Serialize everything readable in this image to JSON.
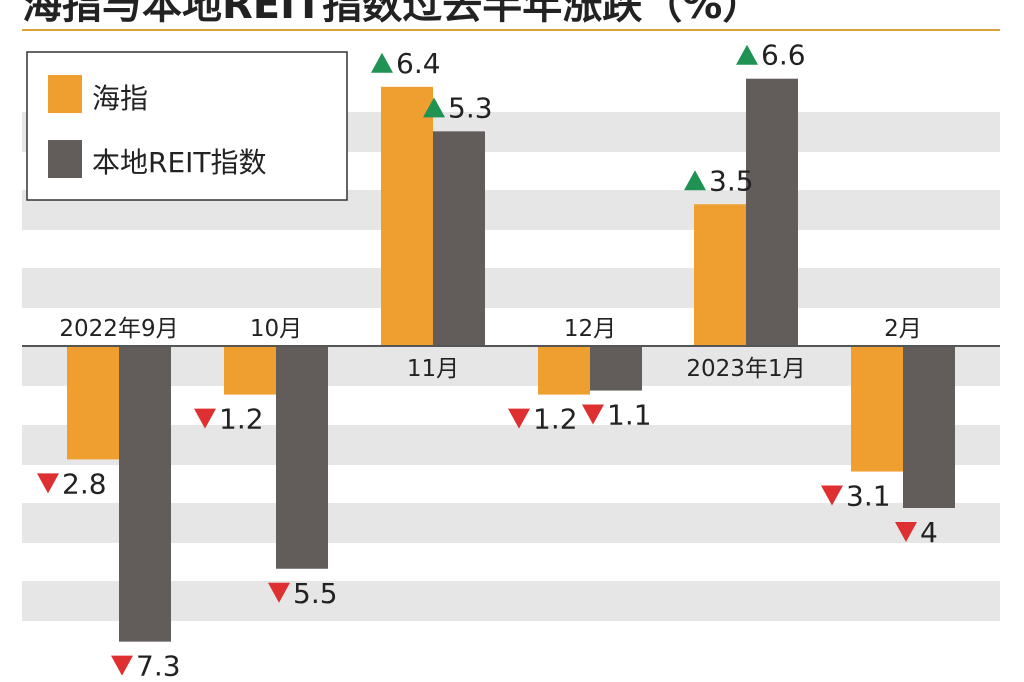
{
  "title": "海指与本地REIT指数过去半年涨跌（%）",
  "colors": {
    "orange": "#ef9f2f",
    "gray": "#625d5a",
    "up": "#1f9254",
    "down": "#de3030",
    "stripe": "#e6e6e6",
    "title_rule": "#d9a23a",
    "text": "#222222"
  },
  "chart_data": {
    "type": "bar",
    "categories": [
      "2022年9月",
      "10月",
      "11月",
      "12月",
      "2023年1月",
      "2月"
    ],
    "series": [
      {
        "name": "海指",
        "values": [
          -2.8,
          -1.2,
          6.4,
          -1.2,
          3.5,
          -3.1
        ]
      },
      {
        "name": "本地REIT指数",
        "values": [
          -7.3,
          -5.5,
          5.3,
          -1.1,
          6.6,
          -4
        ]
      }
    ],
    "data_labels": [
      [
        "2.8",
        "1.2",
        "6.4",
        "1.2",
        "3.5",
        "3.1"
      ],
      [
        "7.3",
        "5.5",
        "5.3",
        "1.1",
        "6.6",
        "4"
      ]
    ],
    "ylim": [
      -8,
      7
    ],
    "legend_position": "top-left",
    "grid": "horizontal bands",
    "xlabel": "",
    "ylabel": ""
  }
}
